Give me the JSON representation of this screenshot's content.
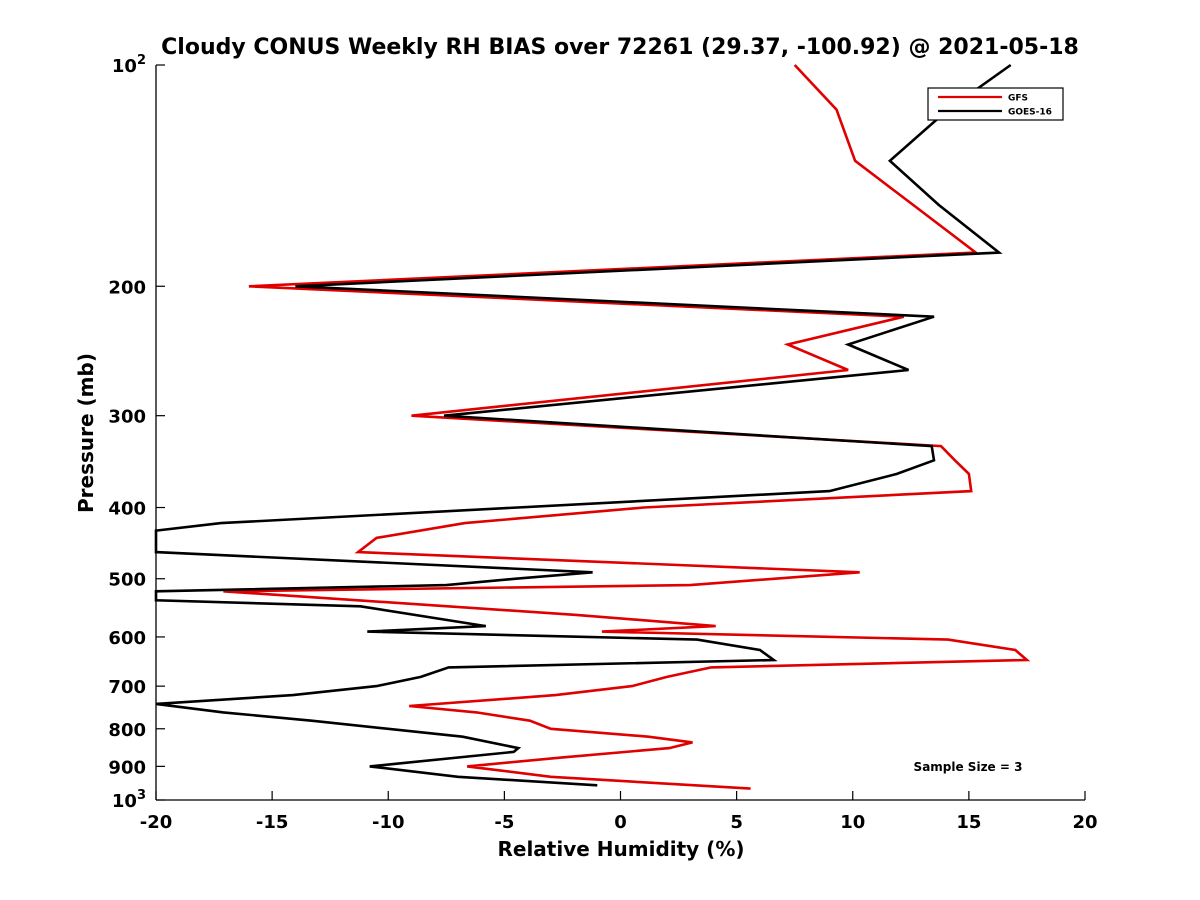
{
  "chart_data": {
    "type": "line",
    "title": "Cloudy CONUS Weekly RH BIAS over 72261 (29.37, -100.92) @ 2021-05-18",
    "xlabel": "Relative Humidity (%)",
    "ylabel": "Pressure (mb)",
    "xlim": [
      -20,
      20
    ],
    "ylim": [
      100,
      1000
    ],
    "y_scale": "log",
    "y_reversed": true,
    "x_ticks": [
      "-20",
      "-15",
      "-10",
      "-5",
      "0",
      "5",
      "10",
      "15",
      "20"
    ],
    "y_ticks": [
      {
        "value": 100,
        "base": "10",
        "exp": "2"
      },
      {
        "value": 200,
        "label": "200"
      },
      {
        "value": 300,
        "label": "300"
      },
      {
        "value": 400,
        "label": "400"
      },
      {
        "value": 500,
        "label": "500"
      },
      {
        "value": 600,
        "label": "600"
      },
      {
        "value": 700,
        "label": "700"
      },
      {
        "value": 800,
        "label": "800"
      },
      {
        "value": 900,
        "label": "900"
      },
      {
        "value": 1000,
        "base": "10",
        "exp": "3"
      }
    ],
    "grid": false,
    "legend_position": "top-right",
    "annotation": "Sample Size = 3",
    "series": [
      {
        "name": "GFS",
        "color": "#e00000",
        "points": [
          [
            7.5,
            100
          ],
          [
            9.3,
            115
          ],
          [
            10.1,
            135
          ],
          [
            12.6,
            155
          ],
          [
            15.3,
            180
          ],
          [
            -16.0,
            200
          ],
          [
            12.2,
            220
          ],
          [
            7.2,
            240
          ],
          [
            9.8,
            260
          ],
          [
            -9.0,
            300
          ],
          [
            13.8,
            330
          ],
          [
            14.4,
            345
          ],
          [
            15.0,
            360
          ],
          [
            15.1,
            380
          ],
          [
            1.0,
            400
          ],
          [
            -6.7,
            420
          ],
          [
            -10.5,
            440
          ],
          [
            -11.3,
            460
          ],
          [
            10.3,
            490
          ],
          [
            3.0,
            510
          ],
          [
            -17.1,
            520
          ],
          [
            -1.9,
            560
          ],
          [
            4.1,
            580
          ],
          [
            -0.8,
            590
          ],
          [
            14.1,
            605
          ],
          [
            17.0,
            625
          ],
          [
            17.5,
            645
          ],
          [
            3.9,
            660
          ],
          [
            2.0,
            680
          ],
          [
            0.5,
            700
          ],
          [
            -2.8,
            720
          ],
          [
            -9.1,
            745
          ],
          [
            -6.2,
            760
          ],
          [
            -3.9,
            780
          ],
          [
            -3.0,
            800
          ],
          [
            1.2,
            820
          ],
          [
            3.1,
            835
          ],
          [
            2.1,
            850
          ],
          [
            -2.5,
            875
          ],
          [
            -6.6,
            900
          ],
          [
            -3.0,
            930
          ],
          [
            5.6,
            965
          ]
        ]
      },
      {
        "name": "GOES-16",
        "color": "#000000",
        "points": [
          [
            16.8,
            100
          ],
          [
            14.1,
            115
          ],
          [
            11.6,
            135
          ],
          [
            13.7,
            155
          ],
          [
            16.3,
            180
          ],
          [
            -14.0,
            200
          ],
          [
            13.5,
            220
          ],
          [
            9.8,
            240
          ],
          [
            12.4,
            260
          ],
          [
            -7.6,
            300
          ],
          [
            13.4,
            330
          ],
          [
            13.5,
            345
          ],
          [
            11.9,
            360
          ],
          [
            9.0,
            380
          ],
          [
            -17.2,
            420
          ],
          [
            -20.0,
            430
          ],
          [
            -20.0,
            460
          ],
          [
            -1.2,
            490
          ],
          [
            -4.5,
            500
          ],
          [
            -7.5,
            510
          ],
          [
            -20.0,
            520
          ],
          [
            -20.0,
            535
          ],
          [
            -11.2,
            545
          ],
          [
            -5.8,
            580
          ],
          [
            -10.9,
            590
          ],
          [
            3.3,
            605
          ],
          [
            6.0,
            625
          ],
          [
            6.6,
            645
          ],
          [
            -7.4,
            660
          ],
          [
            -8.6,
            680
          ],
          [
            -10.5,
            700
          ],
          [
            -14.1,
            720
          ],
          [
            -20.0,
            740
          ],
          [
            -17.1,
            760
          ],
          [
            -13.3,
            780
          ],
          [
            -6.8,
            820
          ],
          [
            -4.4,
            850
          ],
          [
            -4.6,
            860
          ],
          [
            -10.8,
            900
          ],
          [
            -7.0,
            930
          ],
          [
            -1.0,
            955
          ]
        ]
      }
    ]
  }
}
